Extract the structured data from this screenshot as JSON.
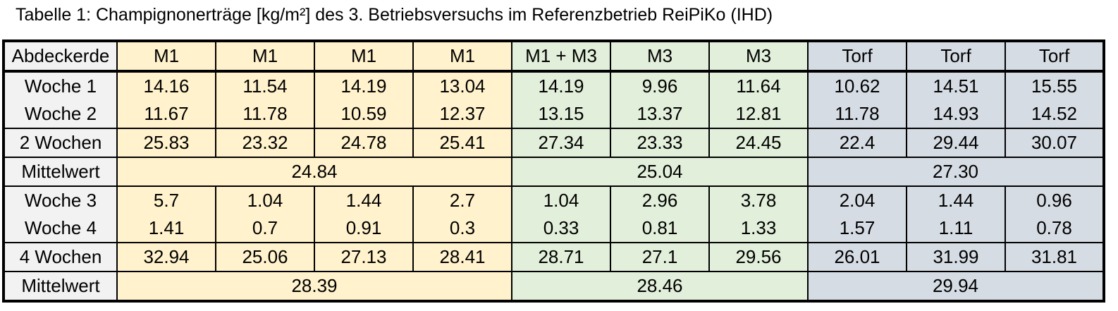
{
  "caption": "Tabelle 1: Champignonerträge [kg/m²] des 3. Betriebsversuchs im Referenzbetrieb ReiPiKo (IHD)",
  "colors": {
    "m1": "#fff2cc",
    "m3": "#e2efda",
    "torf": "#d6dce4",
    "label": "#f2f2f2"
  },
  "table": {
    "header": {
      "label": "Abdeckerde",
      "cells": [
        "M1",
        "M1",
        "M1",
        "M1",
        "M1 + M3",
        "M3",
        "M3",
        "Torf",
        "Torf",
        "Torf"
      ]
    },
    "woche1": {
      "label": "Woche 1",
      "cells": [
        "14.16",
        "11.54",
        "14.19",
        "13.04",
        "14.19",
        "9.96",
        "11.64",
        "10.62",
        "14.51",
        "15.55"
      ]
    },
    "woche2": {
      "label": "Woche 2",
      "cells": [
        "11.67",
        "11.78",
        "10.59",
        "12.37",
        "13.15",
        "13.37",
        "12.81",
        "11.78",
        "14.93",
        "14.52"
      ]
    },
    "zwei_wochen": {
      "label": "2 Wochen",
      "cells": [
        "25.83",
        "23.32",
        "24.78",
        "25.41",
        "27.34",
        "23.33",
        "24.45",
        "22.4",
        "29.44",
        "30.07"
      ]
    },
    "mittelwert1": {
      "label": "Mittelwert",
      "m1": "24.84",
      "m3": "25.04",
      "torf": "27.30"
    },
    "woche3": {
      "label": "Woche 3",
      "cells": [
        "5.7",
        "1.04",
        "1.44",
        "2.7",
        "1.04",
        "2.96",
        "3.78",
        "2.04",
        "1.44",
        "0.96"
      ]
    },
    "woche4": {
      "label": "Woche 4",
      "cells": [
        "1.41",
        "0.7",
        "0.91",
        "0.3",
        "0.33",
        "0.81",
        "1.33",
        "1.57",
        "1.11",
        "0.78"
      ]
    },
    "vier_wochen": {
      "label": "4 Wochen",
      "cells": [
        "32.94",
        "25.06",
        "27.13",
        "28.41",
        "28.71",
        "27.1",
        "29.56",
        "26.01",
        "31.99",
        "31.81"
      ]
    },
    "mittelwert2": {
      "label": "Mittelwert",
      "m1": "28.39",
      "m3": "28.46",
      "torf": "29.94"
    }
  }
}
